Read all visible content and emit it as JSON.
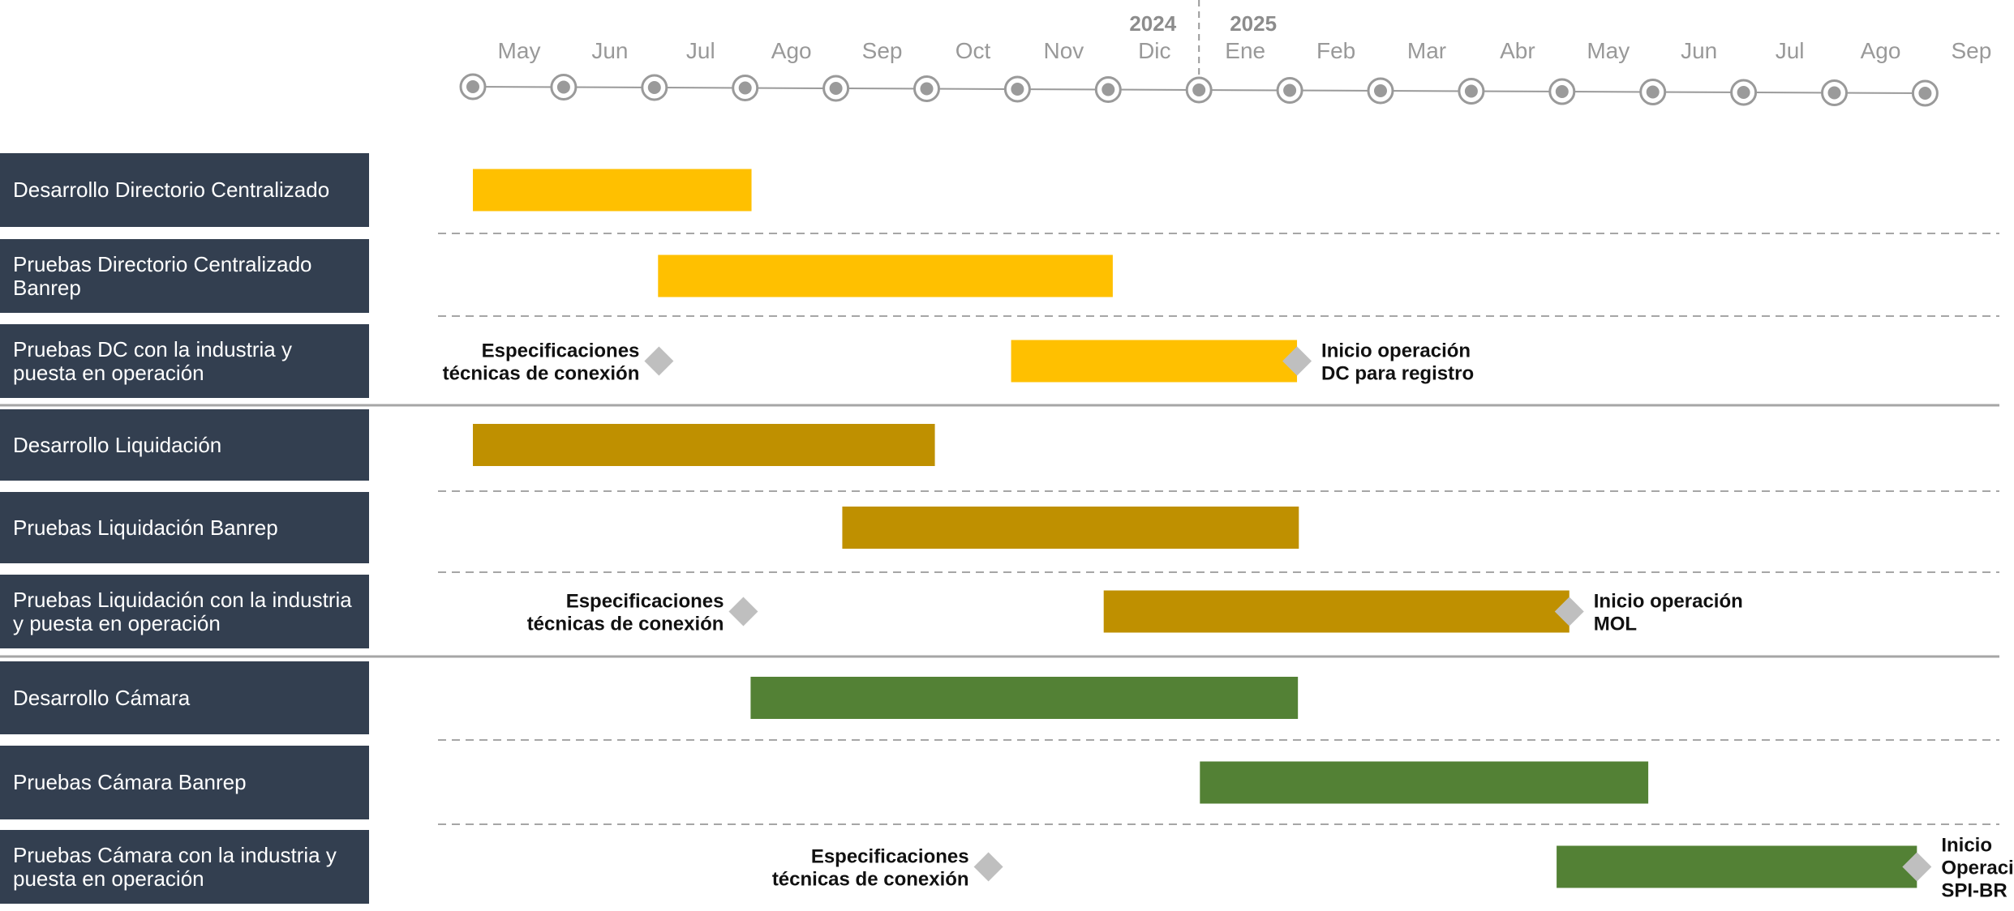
{
  "colors": {
    "label_bg": "#333f50",
    "label_text": "#ffffff",
    "timeline": "#9a9a9a",
    "month_text": "#999999",
    "year_text": "#8c8c8c",
    "sep_dashed": "#a6a6a6",
    "sep_solid": "#a6a6a6",
    "milestone": "#bfbfbf",
    "annotation_text": "#111111",
    "group1": "#ffc000",
    "group2": "#bf9000",
    "group3": "#538135"
  },
  "timeline": {
    "years": [
      {
        "label": "2024",
        "month_index": 7
      },
      {
        "label": "2025",
        "month_index": 8
      }
    ],
    "months": [
      "May",
      "Jun",
      "Jul",
      "Ago",
      "Sep",
      "Oct",
      "Nov",
      "Dic",
      "Ene",
      "Feb",
      "Mar",
      "Abr",
      "May",
      "Jun",
      "Jul",
      "Ago",
      "Sep"
    ]
  },
  "rows": [
    {
      "label": "Desarrollo Directorio Centralizado",
      "group": 1,
      "bar": {
        "start": 0,
        "end": 3.07
      }
    },
    {
      "label": "Pruebas Directorio Centralizado Banrep",
      "group": 1,
      "bar": {
        "start": 2.04,
        "end": 7.05
      }
    },
    {
      "label": "Pruebas DC con la industria y puesta en operación",
      "group": 1,
      "bar": {
        "start": 5.93,
        "end": 9.08
      },
      "milestones": [
        {
          "at": 2.05,
          "side": "left",
          "lines": [
            "Especificaciones",
            "técnicas de conexión"
          ]
        },
        {
          "at": 9.08,
          "side": "right",
          "lines": [
            "Inicio operación",
            "DC para registro"
          ]
        }
      ]
    },
    {
      "label": "Desarrollo Liquidación",
      "group": 2,
      "bar": {
        "start": 0,
        "end": 5.09
      }
    },
    {
      "label": "Pruebas Liquidación Banrep",
      "group": 2,
      "bar": {
        "start": 4.07,
        "end": 9.1
      }
    },
    {
      "label": "Pruebas Liquidación con la industria y puesta en operación",
      "group": 2,
      "bar": {
        "start": 6.95,
        "end": 12.08
      },
      "milestones": [
        {
          "at": 2.98,
          "side": "left",
          "lines": [
            "Especificaciones",
            "técnicas de conexión"
          ]
        },
        {
          "at": 12.08,
          "side": "right",
          "lines": [
            "Inicio operación",
            "MOL"
          ]
        }
      ]
    },
    {
      "label": "Desarrollo Cámara",
      "group": 3,
      "bar": {
        "start": 3.06,
        "end": 9.09
      }
    },
    {
      "label": "Pruebas Cámara Banrep",
      "group": 3,
      "bar": {
        "start": 8.01,
        "end": 12.95
      }
    },
    {
      "label": "Pruebas Cámara con la industria y puesta en operación",
      "group": 3,
      "bar": {
        "start": 11.94,
        "end": 15.91
      },
      "milestones": [
        {
          "at": 5.68,
          "side": "left",
          "lines": [
            "Especificaciones",
            "técnicas de conexión"
          ]
        },
        {
          "at": 15.91,
          "side": "right",
          "lines": [
            "Inicio",
            "Operación",
            "SPI-BR"
          ]
        }
      ]
    }
  ]
}
